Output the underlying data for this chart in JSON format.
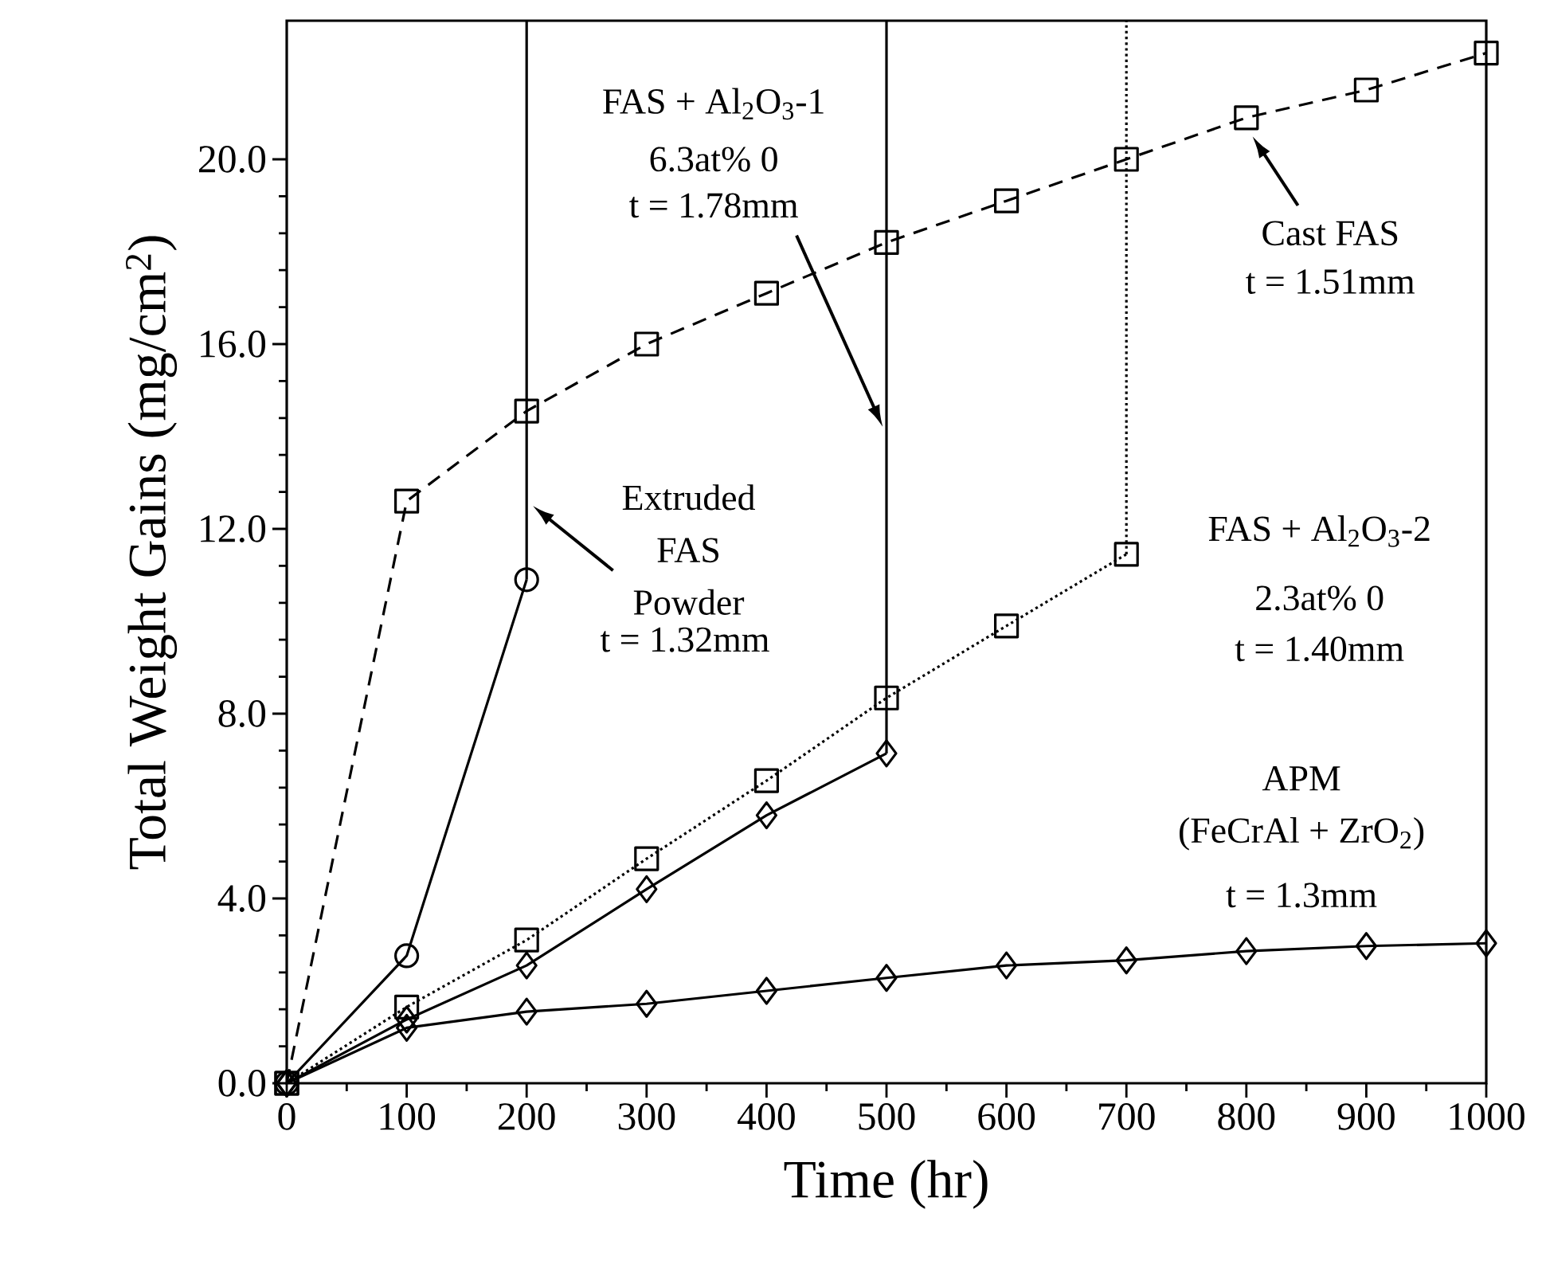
{
  "chart_data": {
    "type": "line",
    "xlabel": "Time  (hr)",
    "ylabel": "Total Weight Gains (mg/cm$^{2}$)",
    "xlim": [
      0,
      1000
    ],
    "ylim": [
      0,
      23
    ],
    "xticks": [
      0,
      100,
      200,
      300,
      400,
      500,
      600,
      700,
      800,
      900,
      1000
    ],
    "yticks": [
      {
        "value": 0,
        "label": "0.0"
      },
      {
        "value": 4,
        "label": "4.0"
      },
      {
        "value": 8,
        "label": "8.0"
      },
      {
        "value": 12,
        "label": "12.0"
      },
      {
        "value": 16,
        "label": "16.0"
      },
      {
        "value": 20,
        "label": "20.0"
      }
    ],
    "series": [
      {
        "color": "#000000",
        "marker": "square",
        "line_style": "dashed",
        "x": [
          0,
          100,
          200,
          300,
          400,
          500,
          600,
          700,
          800,
          900,
          1000
        ],
        "values": [
          0,
          12.6,
          14.55,
          16.0,
          17.1,
          18.2,
          19.1,
          20.0,
          20.9,
          21.5,
          22.3
        ]
      },
      {
        "color": "#000000",
        "marker": "circle",
        "line_style": "solid",
        "x": [
          0,
          100,
          200
        ],
        "values": [
          0,
          2.76,
          10.9
        ]
      },
      {
        "color": "#000000",
        "marker": "none",
        "line_style": "solid",
        "x": [
          200,
          200
        ],
        "values": [
          10.9,
          23
        ]
      },
      {
        "color": "#000000",
        "marker": "diamond",
        "line_style": "solid",
        "x": [
          0,
          100,
          200,
          300,
          400,
          500
        ],
        "values": [
          0,
          1.38,
          2.55,
          4.2,
          5.8,
          7.14
        ]
      },
      {
        "color": "#000000",
        "marker": "none",
        "line_style": "solid",
        "x": [
          500,
          500
        ],
        "values": [
          7.14,
          23
        ]
      },
      {
        "color": "#000000",
        "marker": "square",
        "line_style": "dotted",
        "x": [
          0,
          100,
          200,
          300,
          400,
          500,
          600,
          700
        ],
        "values": [
          0,
          1.65,
          3.1,
          4.86,
          6.55,
          8.34,
          9.9,
          11.45
        ]
      },
      {
        "color": "#000000",
        "marker": "none",
        "line_style": "dotted",
        "x": [
          700,
          700
        ],
        "values": [
          11.45,
          23
        ]
      },
      {
        "color": "#000000",
        "marker": "diamond",
        "line_style": "solid",
        "x": [
          0,
          100,
          200,
          300,
          400,
          500,
          600,
          700,
          800,
          900,
          1000
        ],
        "values": [
          0,
          1.2,
          1.55,
          1.72,
          2.0,
          2.28,
          2.55,
          2.66,
          2.86,
          2.97,
          3.03
        ]
      }
    ],
    "annotations": [
      "Extruded FAS Powder",
      "t = 1.32mm",
      "FAS + Al$_{2}$O$_{3}$-1",
      "6.3at% 0",
      "t = 1.78mm",
      "Cast FAS",
      "t = 1.51mm",
      "FAS + Al$_{2}$O$_{3}$-2",
      "2.3at% 0",
      "t = 1.40mm",
      "APM",
      "(FeCrAl + ZrO$_{2}$)",
      "t = 1.3mm"
    ]
  }
}
